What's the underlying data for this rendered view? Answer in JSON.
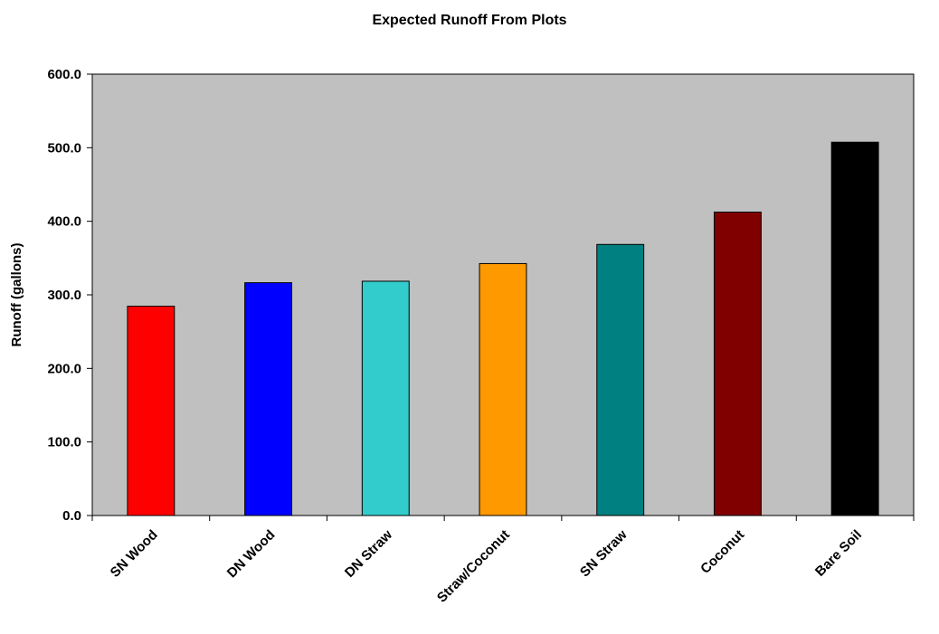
{
  "chart_data": {
    "type": "bar",
    "title": "Expected Runoff From Plots",
    "xlabel": "",
    "ylabel": "Runoff (gallons)",
    "categories": [
      "SN Wood",
      "DN Wood",
      "DN Straw",
      "Straw/Coconut",
      "SN Straw",
      "Coconut",
      "Bare Soil"
    ],
    "values": [
      284.5,
      316.5,
      318.5,
      342.5,
      368.5,
      412.5,
      507.5
    ],
    "bar_colors": [
      "#ff0000",
      "#0000ff",
      "#33cccc",
      "#ff9900",
      "#008080",
      "#800000",
      "#000000"
    ],
    "ylim": [
      0,
      600
    ],
    "yticks": [
      0,
      100,
      200,
      300,
      400,
      500,
      600
    ],
    "ytick_labels": [
      "0.0",
      "100.0",
      "200.0",
      "300.0",
      "400.0",
      "500.0",
      "600.0"
    ],
    "plot_background": "#c0c0c0",
    "grid": false,
    "legend": "none"
  }
}
